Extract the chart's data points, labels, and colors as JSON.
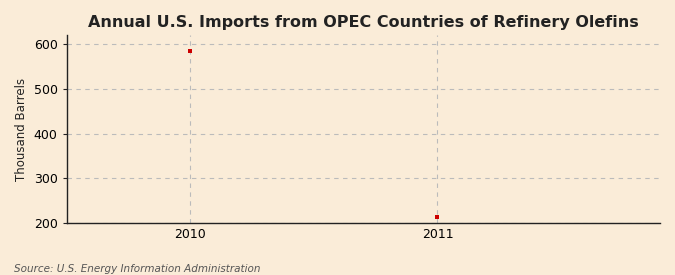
{
  "title": "Annual U.S. Imports from OPEC Countries of Refinery Olefins",
  "ylabel": "Thousand Barrels",
  "source": "Source: U.S. Energy Information Administration",
  "background_color": "#faecd8",
  "plot_background_color": "#faecd8",
  "years": [
    2010,
    2011
  ],
  "values": [
    586,
    214
  ],
  "point_color": "#cc0000",
  "ylim": [
    200,
    620
  ],
  "yticks": [
    200,
    300,
    400,
    500,
    600
  ],
  "xlim": [
    2009.5,
    2011.9
  ],
  "xticks": [
    2010,
    2011
  ],
  "grid_color": "#bbbbbb",
  "axis_color": "#222222",
  "title_fontsize": 11.5,
  "label_fontsize": 8.5,
  "tick_fontsize": 9,
  "source_fontsize": 7.5
}
